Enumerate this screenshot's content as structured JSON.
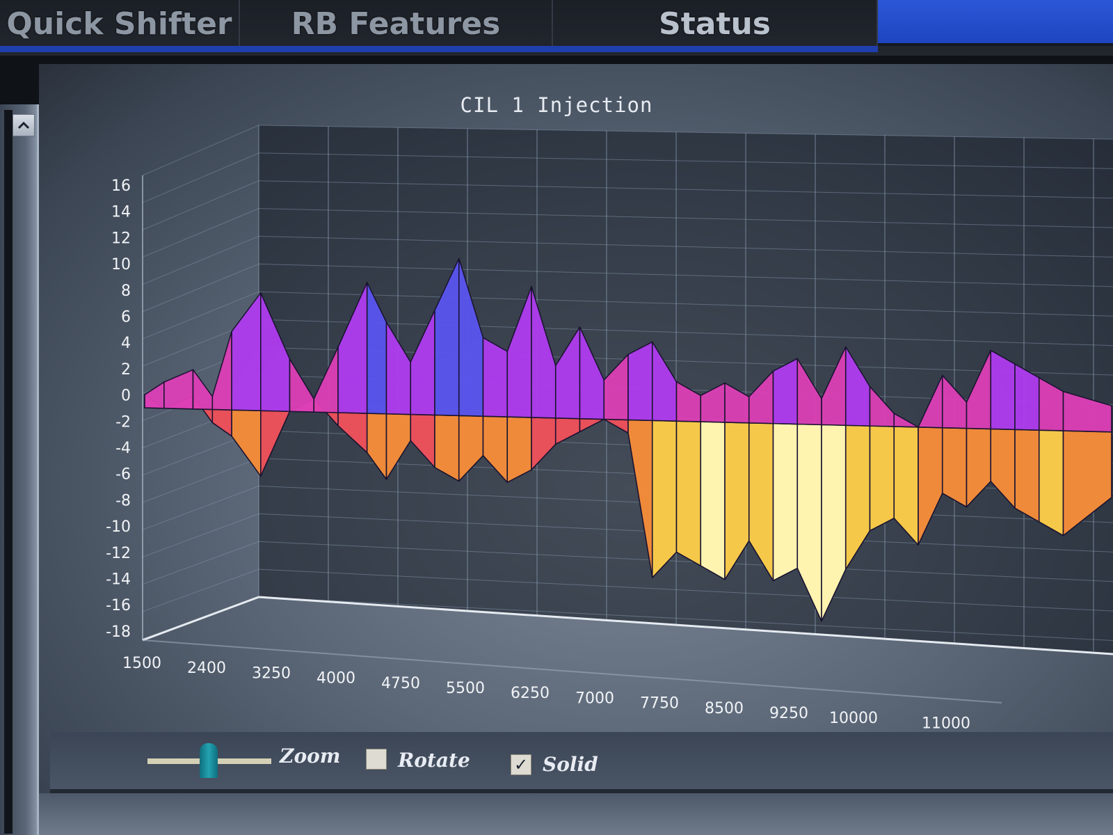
{
  "tabs": [
    {
      "label": "Quick Shifter"
    },
    {
      "label": "RB Features"
    },
    {
      "label": "Status"
    }
  ],
  "scroll": {
    "up_icon": "chevron-up-icon"
  },
  "chart_title": "CIL 1 Injection",
  "controls": {
    "zoom_label": "Zoom",
    "zoom_level": 0.5,
    "rotate_label": "Rotate",
    "rotate_checked": false,
    "solid_label": "Solid",
    "solid_checked": true,
    "check_glyph": "✓"
  },
  "chart_data": {
    "type": "surface-3d",
    "title": "CIL 1 Injection",
    "x_ticks": [
      "1500",
      "2400",
      "3250",
      "4000",
      "4750",
      "5500",
      "6250",
      "7000",
      "7750",
      "8500",
      "9250",
      "10000",
      "11000"
    ],
    "z_ticks": [
      "16",
      "14",
      "12",
      "10",
      "8",
      "6",
      "4",
      "2",
      "0",
      "-2",
      "-4",
      "-6",
      "-8",
      "-10",
      "-12",
      "-14",
      "-16",
      "-18"
    ],
    "ylim": [
      -18,
      16
    ],
    "rpm_values": [
      1500,
      1700,
      2000,
      2200,
      2400,
      2700,
      3000,
      3250,
      3500,
      3800,
      4000,
      4250,
      4500,
      4750,
      5000,
      5250,
      5500,
      5750,
      6000,
      6250,
      6500,
      6750,
      7000,
      7250,
      7500,
      7750,
      8000,
      8250,
      8500,
      8750,
      9000,
      9250,
      9500,
      9750,
      10000,
      10250,
      10500,
      10750,
      11000,
      11500
    ],
    "front_row": [
      0,
      1,
      2,
      0,
      5,
      8,
      3,
      0,
      4,
      9,
      6,
      3,
      7,
      11,
      5,
      4,
      9,
      3,
      6,
      2,
      4,
      5,
      2,
      1,
      2,
      1,
      3,
      4,
      1,
      5,
      2,
      0,
      -1,
      3,
      1,
      5,
      4,
      3,
      2,
      1
    ],
    "back_row": [
      0,
      -1,
      0,
      -2,
      -3,
      -6,
      -1,
      0,
      -2,
      -4,
      -6,
      -3,
      -5,
      -6,
      -4,
      -6,
      -5,
      -3,
      -2,
      -1,
      -2,
      -13,
      -11,
      -12,
      -13,
      -10,
      -13,
      -12,
      -16,
      -12,
      -9,
      -8,
      -10,
      -6,
      -7,
      -5,
      -7,
      -8,
      -9,
      -6
    ],
    "color_scale": [
      "#fff3b0",
      "#f5c84a",
      "#ef8a3a",
      "#e8505a",
      "#dd3fb6",
      "#b03cf0",
      "#5a55f0"
    ],
    "grid": true
  }
}
